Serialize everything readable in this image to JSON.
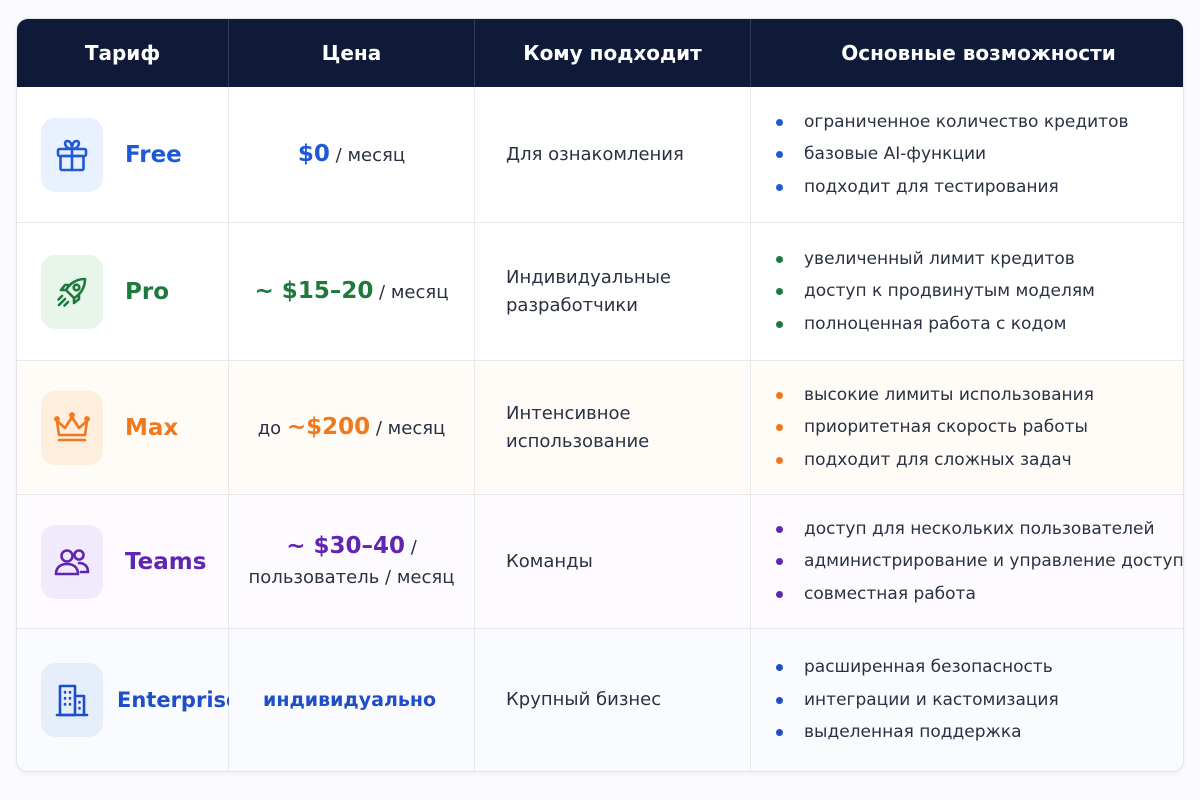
{
  "header": {
    "plan": "Тариф",
    "price": "Цена",
    "audience": "Кому подходит",
    "features": "Основные возможности"
  },
  "rows": [
    {
      "icon": "gift-icon",
      "name": "Free",
      "price_prefix": "",
      "price_value": "$0",
      "price_suffix": " / месяц",
      "audience": "Для ознакомления",
      "features": [
        "ограниченное количество кредитов",
        "базовые AI-функции",
        "подходит для тестирования"
      ],
      "color": "#1f5ad6"
    },
    {
      "icon": "rocket-icon",
      "name": "Pro",
      "price_prefix": "",
      "price_value": "~ $15–20",
      "price_suffix": " / месяц",
      "audience": "Индивидуальные разработчики",
      "features": [
        "увеличенный лимит кредитов",
        "доступ к продвинутым моделям",
        "полноценная работа с кодом"
      ],
      "color": "#1d7a3c"
    },
    {
      "icon": "crown-icon",
      "name": "Max",
      "price_prefix": "до ",
      "price_value": "~$200",
      "price_suffix": " / месяц",
      "audience": "Интенсивное использование",
      "features": [
        "высокие лимиты использования",
        "приоритетная скорость работы",
        "подходит для сложных задач"
      ],
      "color": "#f0791d"
    },
    {
      "icon": "users-icon",
      "name": "Teams",
      "price_prefix": "",
      "price_value": "~ $30–40",
      "price_suffix": " /",
      "price_line2": "пользователь / месяц",
      "audience": "Команды",
      "features": [
        "доступ для нескольких пользователей",
        "администрирование и управление доступом",
        "совместная работа"
      ],
      "color": "#6026b0"
    },
    {
      "icon": "building-icon",
      "name": "Enterprise",
      "price_prefix": "",
      "price_value": "индивидуально",
      "price_suffix": "",
      "audience": "Крупный бизнес",
      "features": [
        "расширенная безопасность",
        "интеграции и кастомизация",
        "выделенная поддержка"
      ],
      "color": "#1f4fc8"
    }
  ]
}
